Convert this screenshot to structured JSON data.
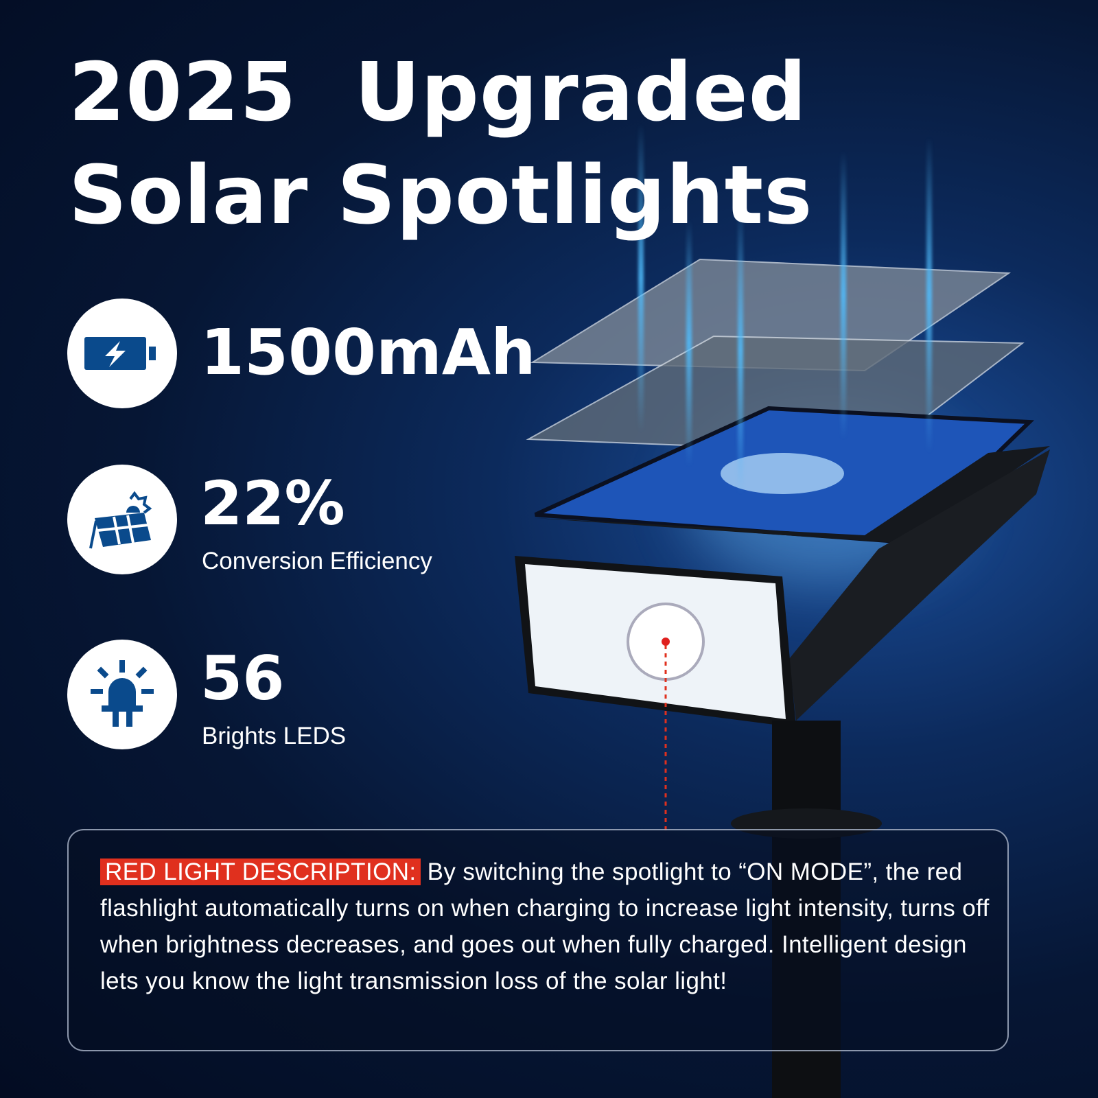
{
  "headline": {
    "line1": "2025  Upgraded",
    "line2": "Solar Spotlights"
  },
  "features": [
    {
      "icon": "battery-charging-icon",
      "value": "1500mAh",
      "label": ""
    },
    {
      "icon": "solar-panel-sun-icon",
      "value": "22%",
      "label": "Conversion Efficiency"
    },
    {
      "icon": "led-light-icon",
      "value": "56",
      "label": "Brights LEDS"
    }
  ],
  "description": {
    "label": "RED LIGHT DESCRIPTION:",
    "text": " By switching the spotlight to “ON MODE”, the red flashlight automatically turns on when charging to increase light intensity, turns off when brightness decreases, and goes out when fully charged. Intelligent design lets you know the light transmission loss of the solar light!"
  },
  "colors": {
    "icon_blue": "#0a4a8c",
    "accent_red": "#e0301e",
    "background": "#061634"
  }
}
